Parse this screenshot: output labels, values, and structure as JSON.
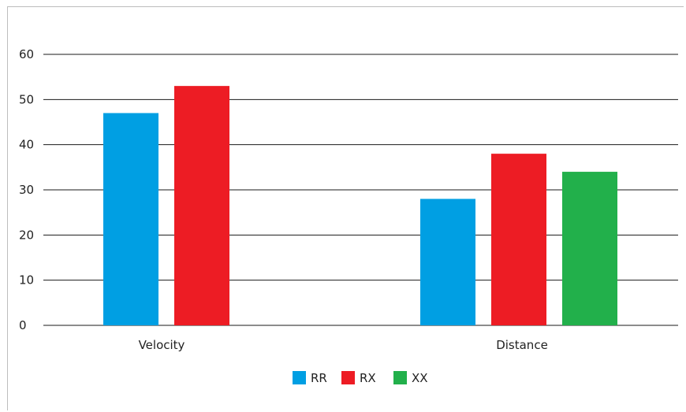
{
  "chart_data": {
    "type": "bar",
    "categories": [
      "Velocity",
      "Distance"
    ],
    "series": [
      {
        "name": "RR",
        "values": [
          47,
          28
        ],
        "color": "#009fe3"
      },
      {
        "name": "RX",
        "values": [
          53,
          38
        ],
        "color": "#ed1c24"
      },
      {
        "name": "XX",
        "values": [
          null,
          34
        ],
        "color": "#22b04b"
      }
    ],
    "ylim": [
      0,
      60
    ],
    "yticks": [
      0,
      10,
      20,
      30,
      40,
      50,
      60
    ],
    "grid": true,
    "legend": "bottom-center"
  }
}
